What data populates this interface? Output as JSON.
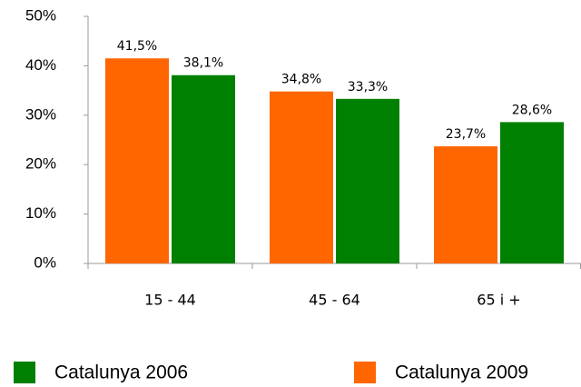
{
  "chart_data": {
    "type": "bar",
    "categories": [
      "15 - 44",
      "45 - 64",
      "65 i +"
    ],
    "series": [
      {
        "name": "Catalunya 2009",
        "color": "#ff6600",
        "values": [
          41.5,
          34.8,
          23.7
        ],
        "value_labels": [
          "41,5%",
          "34,8%",
          "23,7%"
        ]
      },
      {
        "name": "Catalunya 2006",
        "color": "#008000",
        "values": [
          38.1,
          33.3,
          28.6
        ],
        "value_labels": [
          "38,1%",
          "33,3%",
          "28,6%"
        ]
      }
    ],
    "ylim": [
      0,
      50
    ],
    "yticks": [
      {
        "value": 0,
        "label": "0%"
      },
      {
        "value": 10,
        "label": "10%"
      },
      {
        "value": 20,
        "label": "20%"
      },
      {
        "value": 30,
        "label": "30%"
      },
      {
        "value": 40,
        "label": "40%"
      },
      {
        "value": 50,
        "label": "50%"
      }
    ],
    "grid": false
  }
}
